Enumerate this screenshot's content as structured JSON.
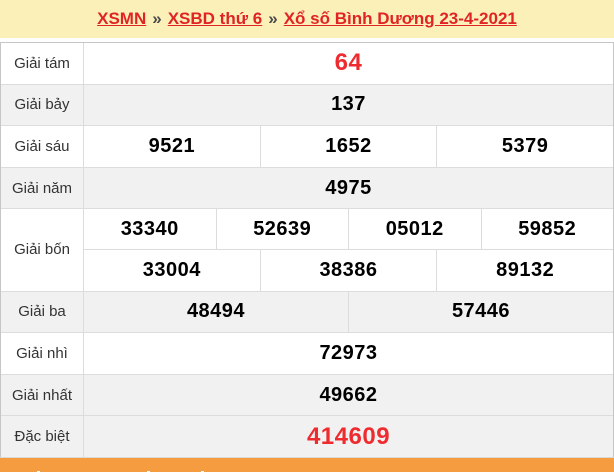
{
  "breadcrumb": {
    "separator": "»",
    "items": [
      {
        "label": "XSMN"
      },
      {
        "label": "XSBD thứ 6"
      },
      {
        "label": "Xổ số Bình Dương 23-4-2021"
      }
    ]
  },
  "results_table": {
    "rows": [
      {
        "label": "Giải tám",
        "shaded": false,
        "emphasis": "red-large",
        "lines": [
          [
            "64"
          ]
        ]
      },
      {
        "label": "Giải bảy",
        "shaded": true,
        "emphasis": "",
        "lines": [
          [
            "137"
          ]
        ]
      },
      {
        "label": "Giải sáu",
        "shaded": false,
        "emphasis": "",
        "lines": [
          [
            "9521",
            "1652",
            "5379"
          ]
        ]
      },
      {
        "label": "Giải năm",
        "shaded": true,
        "emphasis": "",
        "lines": [
          [
            "4975"
          ]
        ]
      },
      {
        "label": "Giải bốn",
        "shaded": false,
        "emphasis": "",
        "lines": [
          [
            "33340",
            "52639",
            "05012",
            "59852"
          ],
          [
            "33004",
            "38386",
            "89132"
          ]
        ]
      },
      {
        "label": "Giải ba",
        "shaded": true,
        "emphasis": "",
        "lines": [
          [
            "48494",
            "57446"
          ]
        ]
      },
      {
        "label": "Giải nhì",
        "shaded": false,
        "emphasis": "",
        "lines": [
          [
            "72973"
          ]
        ]
      },
      {
        "label": "Giải nhất",
        "shaded": true,
        "emphasis": "",
        "lines": [
          [
            "49662"
          ]
        ]
      },
      {
        "label": "Đặc biệt",
        "shaded": true,
        "emphasis": "red-large",
        "lines": [
          [
            "414609"
          ]
        ]
      }
    ]
  },
  "colors": {
    "breadcrumb_band_bg": "#fcf0b9",
    "link_red": "#e02424",
    "number_red": "#ee2b2f",
    "shaded_row_bg": "#f1f1f1",
    "bottom_bar_orange": "#f59c40"
  }
}
